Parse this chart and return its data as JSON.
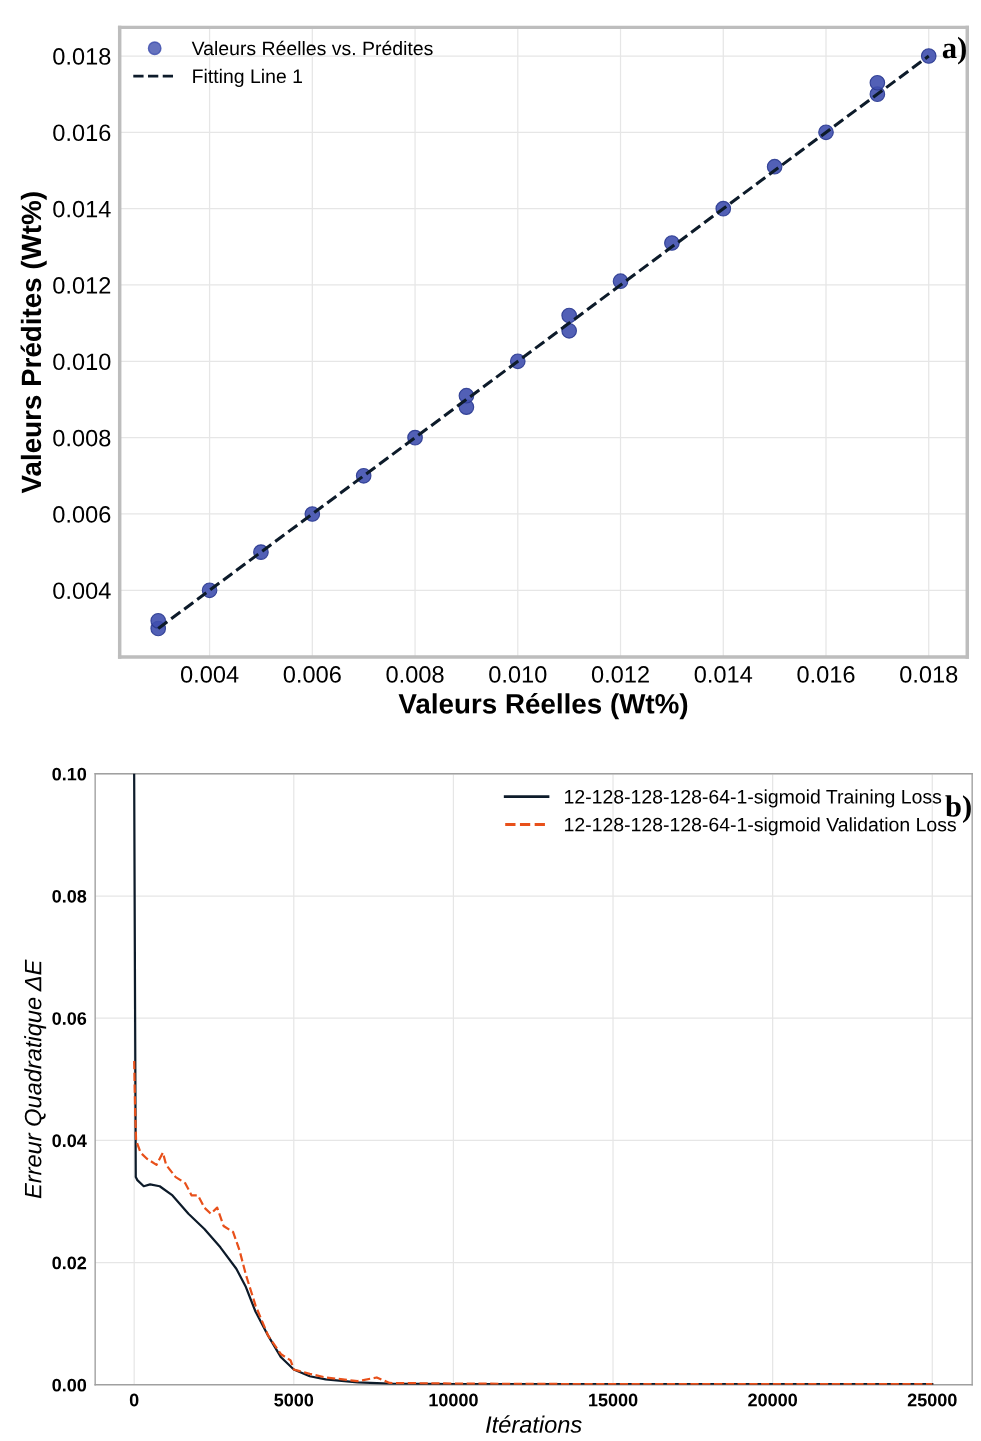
{
  "chart_data": [
    {
      "type": "scatter",
      "xlabel": "Valeurs Réelles (Wt%)",
      "ylabel": "Valeurs Prédites (Wt%)",
      "xlim": [
        0.00225,
        0.01875
      ],
      "ylim": [
        0.00225,
        0.01875
      ],
      "xticks": [
        {
          "value": 0.004,
          "label": "0.004"
        },
        {
          "value": 0.006,
          "label": "0.006"
        },
        {
          "value": 0.008,
          "label": "0.008"
        },
        {
          "value": 0.01,
          "label": "0.010"
        },
        {
          "value": 0.012,
          "label": "0.012"
        },
        {
          "value": 0.014,
          "label": "0.014"
        },
        {
          "value": 0.016,
          "label": "0.016"
        },
        {
          "value": 0.018,
          "label": "0.018"
        }
      ],
      "yticks": [
        {
          "value": 0.004,
          "label": "0.004"
        },
        {
          "value": 0.006,
          "label": "0.006"
        },
        {
          "value": 0.008,
          "label": "0.008"
        },
        {
          "value": 0.01,
          "label": "0.010"
        },
        {
          "value": 0.012,
          "label": "0.012"
        },
        {
          "value": 0.014,
          "label": "0.014"
        },
        {
          "value": 0.016,
          "label": "0.016"
        },
        {
          "value": 0.018,
          "label": "0.018"
        }
      ],
      "grid": true,
      "legend": "top left",
      "annotations": [
        "a)"
      ],
      "series": [
        {
          "name": "Valeurs Réelles vs. Prédites",
          "type": "scatter",
          "marker": "circle",
          "color": "#3f4fae",
          "x": [
            0.003,
            0.003,
            0.004,
            0.005,
            0.006,
            0.007,
            0.008,
            0.009,
            0.009,
            0.01,
            0.011,
            0.011,
            0.012,
            0.013,
            0.014,
            0.015,
            0.016,
            0.017,
            0.017,
            0.018
          ],
          "values": [
            0.003,
            0.0032,
            0.004,
            0.005,
            0.006,
            0.007,
            0.008,
            0.0088,
            0.0091,
            0.01,
            0.0108,
            0.0112,
            0.0121,
            0.0131,
            0.014,
            0.0151,
            0.016,
            0.017,
            0.0173,
            0.018
          ]
        },
        {
          "name": "Fitting Line 1",
          "type": "line",
          "line_style": "dashed",
          "marker": "none",
          "color": "#0d1b2a",
          "x": [
            0.003,
            0.018
          ],
          "values": [
            0.003,
            0.018
          ]
        }
      ]
    },
    {
      "type": "line",
      "xlabel": "Itérations",
      "ylabel": "Erreur Quadratique ΔE",
      "xlim": [
        -1222,
        26250
      ],
      "ylim": [
        0,
        0.1
      ],
      "xticks": [
        0,
        5000,
        10000,
        15000,
        20000,
        25000
      ],
      "yticks": [
        {
          "value": 0,
          "label": "0.00"
        },
        {
          "value": 0.02,
          "label": "0.02"
        },
        {
          "value": 0.04,
          "label": "0.04"
        },
        {
          "value": 0.06,
          "label": "0.06"
        },
        {
          "value": 0.08,
          "label": "0.08"
        },
        {
          "value": 0.1,
          "label": "0.10"
        }
      ],
      "grid": true,
      "legend": "top right",
      "annotations": [
        "b)"
      ],
      "series": [
        {
          "name": "12-128-128-128-64-1-sigmoid Training Loss",
          "line_style": "solid",
          "color": "#0d1b2a",
          "x": [
            0,
            30,
            50,
            100,
            300,
            500,
            800,
            1200,
            1700,
            2200,
            2700,
            3200,
            3500,
            3800,
            4200,
            4600,
            5000,
            5500,
            6000,
            7000,
            8000,
            10000,
            15000,
            20000,
            25000
          ],
          "values": [
            0.1,
            0.06,
            0.034,
            0.0335,
            0.0325,
            0.0328,
            0.0325,
            0.031,
            0.028,
            0.0255,
            0.0225,
            0.019,
            0.016,
            0.012,
            0.008,
            0.0045,
            0.0025,
            0.0014,
            0.0009,
            0.0004,
            0.0002,
            0.0001,
            0.0001,
            0.0001,
            0.0001
          ]
        },
        {
          "name": "12-128-128-128-64-1-sigmoid Validation Loss",
          "line_style": "dashed",
          "color": "#e8501a",
          "x": [
            0,
            30,
            60,
            200,
            400,
            700,
            900,
            1000,
            1300,
            1600,
            1800,
            2000,
            2200,
            2400,
            2600,
            2800,
            3100,
            3300,
            3500,
            3800,
            4200,
            4600,
            4900,
            5000,
            5500,
            6000,
            7000,
            7600,
            8000,
            10000,
            15000,
            25000
          ],
          "values": [
            0.053,
            0.045,
            0.04,
            0.038,
            0.037,
            0.036,
            0.038,
            0.036,
            0.034,
            0.033,
            0.031,
            0.031,
            0.029,
            0.028,
            0.029,
            0.026,
            0.025,
            0.022,
            0.018,
            0.013,
            0.008,
            0.005,
            0.004,
            0.0025,
            0.0018,
            0.0012,
            0.0006,
            0.0012,
            0.0003,
            0.0002,
            0.0001,
            0.0001
          ]
        }
      ]
    }
  ]
}
